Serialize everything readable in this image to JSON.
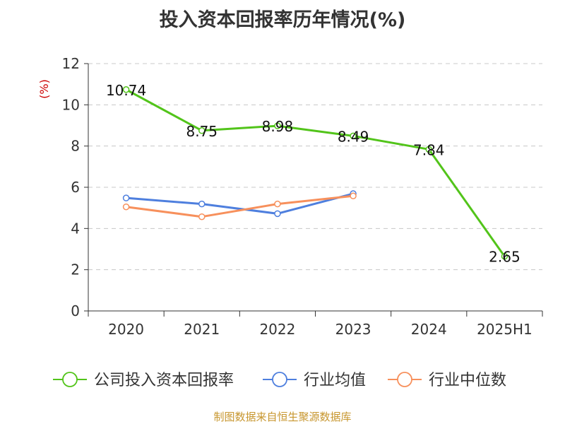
{
  "chart_data": {
    "type": "line",
    "title": "投入资本回报率历年情况(%)",
    "ylabel": "(%)",
    "xlabel": "",
    "categories": [
      "2020",
      "2021",
      "2022",
      "2023",
      "2024",
      "2025H1"
    ],
    "ylim": [
      0,
      12
    ],
    "yticks": [
      0,
      2,
      4,
      6,
      8,
      10,
      12
    ],
    "grid": true,
    "legend_position": "bottom",
    "series": [
      {
        "name": "公司投入资本回报率",
        "color": "#52c41a",
        "values": [
          10.74,
          8.75,
          8.98,
          8.49,
          7.84,
          2.65
        ],
        "data_labels": true
      },
      {
        "name": "行业均值",
        "color": "#4e7fde",
        "values": [
          5.48,
          5.19,
          4.72,
          5.69,
          null,
          null
        ],
        "data_labels": false
      },
      {
        "name": "行业中位数",
        "color": "#f7905c",
        "values": [
          5.05,
          4.57,
          5.19,
          5.58,
          null,
          null
        ],
        "data_labels": false
      }
    ]
  },
  "footer": {
    "source": "制图数据来自恒生聚源数据库"
  }
}
